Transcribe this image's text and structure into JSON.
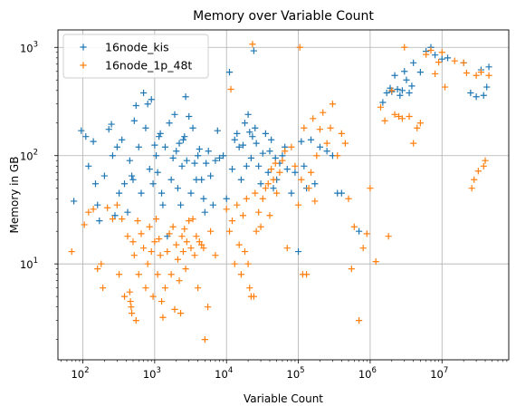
{
  "chart_data": {
    "type": "scatter",
    "title": "Memory over Variable Count",
    "xlabel": "Variable Count",
    "ylabel": "Memory in GB",
    "x_scale": "log",
    "y_scale": "log",
    "xlim": [
      45,
      85000000
    ],
    "ylim": [
      1.3,
      1450
    ],
    "grid": true,
    "legend_position": "top-left",
    "x_ticks": [
      {
        "value": 100,
        "base": "10",
        "exp": "2"
      },
      {
        "value": 1000,
        "base": "10",
        "exp": "3"
      },
      {
        "value": 10000,
        "base": "10",
        "exp": "4"
      },
      {
        "value": 100000,
        "base": "10",
        "exp": "5"
      },
      {
        "value": 1000000,
        "base": "10",
        "exp": "6"
      },
      {
        "value": 10000000,
        "base": "10",
        "exp": "7"
      }
    ],
    "y_ticks": [
      {
        "value": 10,
        "base": "10",
        "exp": "1"
      },
      {
        "value": 100,
        "base": "10",
        "exp": "2"
      },
      {
        "value": 1000,
        "base": "10",
        "exp": "3"
      }
    ],
    "series": [
      {
        "name": "16node_kis",
        "color": "#1f77b4",
        "marker": "plus",
        "points": [
          [
            75,
            38
          ],
          [
            95,
            170
          ],
          [
            110,
            150
          ],
          [
            120,
            80
          ],
          [
            140,
            135
          ],
          [
            150,
            55
          ],
          [
            160,
            35
          ],
          [
            170,
            25
          ],
          [
            200,
            65
          ],
          [
            230,
            175
          ],
          [
            250,
            195
          ],
          [
            260,
            100
          ],
          [
            280,
            28
          ],
          [
            300,
            120
          ],
          [
            320,
            45
          ],
          [
            350,
            140
          ],
          [
            380,
            55
          ],
          [
            420,
            30
          ],
          [
            450,
            90
          ],
          [
            480,
            65
          ],
          [
            500,
            60
          ],
          [
            520,
            210
          ],
          [
            550,
            290
          ],
          [
            600,
            120
          ],
          [
            650,
            45
          ],
          [
            700,
            380
          ],
          [
            750,
            180
          ],
          [
            800,
            300
          ],
          [
            850,
            75
          ],
          [
            900,
            330
          ],
          [
            950,
            55
          ],
          [
            1000,
            125
          ],
          [
            1050,
            100
          ],
          [
            1100,
            70
          ],
          [
            1150,
            150
          ],
          [
            1200,
            160
          ],
          [
            1250,
            45
          ],
          [
            1300,
            35
          ],
          [
            1400,
            120
          ],
          [
            1500,
            18
          ],
          [
            1600,
            200
          ],
          [
            1700,
            60
          ],
          [
            1800,
            95
          ],
          [
            1900,
            240
          ],
          [
            2000,
            110
          ],
          [
            2100,
            50
          ],
          [
            2200,
            130
          ],
          [
            2300,
            35
          ],
          [
            2400,
            80
          ],
          [
            2500,
            140
          ],
          [
            2600,
            150
          ],
          [
            2700,
            350
          ],
          [
            2800,
            90
          ],
          [
            3000,
            230
          ],
          [
            3200,
            45
          ],
          [
            3400,
            180
          ],
          [
            3600,
            85
          ],
          [
            3800,
            60
          ],
          [
            4000,
            100
          ],
          [
            4200,
            115
          ],
          [
            4500,
            60
          ],
          [
            4800,
            40
          ],
          [
            5000,
            30
          ],
          [
            5200,
            85
          ],
          [
            5600,
            110
          ],
          [
            6000,
            65
          ],
          [
            6500,
            35
          ],
          [
            7000,
            90
          ],
          [
            7500,
            170
          ],
          [
            8000,
            95
          ],
          [
            9000,
            100
          ],
          [
            10000,
            40
          ],
          [
            11000,
            590
          ],
          [
            12000,
            75
          ],
          [
            13000,
            140
          ],
          [
            14000,
            160
          ],
          [
            15000,
            120
          ],
          [
            16000,
            60
          ],
          [
            17000,
            125
          ],
          [
            18000,
            200
          ],
          [
            19000,
            80
          ],
          [
            20000,
            240
          ],
          [
            21000,
            165
          ],
          [
            22000,
            95
          ],
          [
            23000,
            150
          ],
          [
            24000,
            930
          ],
          [
            25000,
            180
          ],
          [
            26000,
            130
          ],
          [
            28000,
            80
          ],
          [
            30000,
            55
          ],
          [
            32000,
            105
          ],
          [
            35000,
            160
          ],
          [
            38000,
            70
          ],
          [
            40000,
            110
          ],
          [
            42000,
            140
          ],
          [
            45000,
            50
          ],
          [
            48000,
            95
          ],
          [
            50000,
            60
          ],
          [
            55000,
            85
          ],
          [
            60000,
            100
          ],
          [
            65000,
            120
          ],
          [
            70000,
            75
          ],
          [
            80000,
            45
          ],
          [
            90000,
            70
          ],
          [
            100000,
            13
          ],
          [
            110000,
            135
          ],
          [
            120000,
            80
          ],
          [
            130000,
            50
          ],
          [
            150000,
            140
          ],
          [
            170000,
            55
          ],
          [
            200000,
            120
          ],
          [
            250000,
            110
          ],
          [
            300000,
            100
          ],
          [
            350000,
            45
          ],
          [
            400000,
            45
          ],
          [
            700000,
            20
          ],
          [
            1500000,
            310
          ],
          [
            1700000,
            380
          ],
          [
            1900000,
            420
          ],
          [
            2000000,
            390
          ],
          [
            2200000,
            550
          ],
          [
            2400000,
            410
          ],
          [
            2600000,
            360
          ],
          [
            2800000,
            400
          ],
          [
            3000000,
            600
          ],
          [
            3200000,
            500
          ],
          [
            3500000,
            380
          ],
          [
            3800000,
            440
          ],
          [
            4000000,
            720
          ],
          [
            5000000,
            590
          ],
          [
            6000000,
            920
          ],
          [
            7000000,
            1000
          ],
          [
            8000000,
            850
          ],
          [
            10000000,
            780
          ],
          [
            12000000,
            800
          ],
          [
            20000000,
            720
          ],
          [
            25000000,
            380
          ],
          [
            30000000,
            350
          ],
          [
            35000000,
            620
          ],
          [
            38000000,
            360
          ],
          [
            42000000,
            430
          ],
          [
            45000000,
            660
          ]
        ]
      },
      {
        "name": "16node_1p_48t",
        "color": "#ff7f0e",
        "marker": "plus",
        "points": [
          [
            70,
            13
          ],
          [
            105,
            23
          ],
          [
            120,
            30
          ],
          [
            140,
            32
          ],
          [
            160,
            9
          ],
          [
            180,
            10
          ],
          [
            190,
            6
          ],
          [
            220,
            33
          ],
          [
            260,
            26
          ],
          [
            300,
            35
          ],
          [
            320,
            8
          ],
          [
            350,
            26
          ],
          [
            380,
            5
          ],
          [
            420,
            18
          ],
          [
            450,
            5.5
          ],
          [
            460,
            4.5
          ],
          [
            470,
            4
          ],
          [
            480,
            3.5
          ],
          [
            500,
            16
          ],
          [
            520,
            12
          ],
          [
            550,
            3
          ],
          [
            580,
            25
          ],
          [
            600,
            8
          ],
          [
            650,
            19
          ],
          [
            700,
            14
          ],
          [
            750,
            6
          ],
          [
            800,
            10
          ],
          [
            850,
            22
          ],
          [
            900,
            13
          ],
          [
            950,
            5
          ],
          [
            1000,
            16
          ],
          [
            1050,
            26
          ],
          [
            1100,
            8
          ],
          [
            1150,
            17
          ],
          [
            1200,
            12
          ],
          [
            1250,
            4.5
          ],
          [
            1300,
            3.2
          ],
          [
            1400,
            6
          ],
          [
            1500,
            13
          ],
          [
            1600,
            19
          ],
          [
            1700,
            8
          ],
          [
            1800,
            22
          ],
          [
            1900,
            3.8
          ],
          [
            2000,
            15
          ],
          [
            2100,
            11
          ],
          [
            2200,
            7
          ],
          [
            2300,
            3.5
          ],
          [
            2400,
            18
          ],
          [
            2500,
            13
          ],
          [
            2600,
            21
          ],
          [
            2700,
            9
          ],
          [
            2800,
            16
          ],
          [
            3000,
            25
          ],
          [
            3200,
            14
          ],
          [
            3400,
            26
          ],
          [
            3600,
            12
          ],
          [
            3800,
            18
          ],
          [
            4000,
            6
          ],
          [
            4200,
            16
          ],
          [
            4500,
            15
          ],
          [
            4800,
            14
          ],
          [
            5000,
            2
          ],
          [
            5500,
            4
          ],
          [
            6000,
            20
          ],
          [
            7000,
            12
          ],
          [
            10000,
            32
          ],
          [
            11000,
            20
          ],
          [
            11500,
            410
          ],
          [
            12000,
            25
          ],
          [
            13000,
            10
          ],
          [
            14000,
            35
          ],
          [
            15000,
            15
          ],
          [
            16000,
            8
          ],
          [
            17000,
            28
          ],
          [
            18000,
            13
          ],
          [
            19000,
            40
          ],
          [
            20000,
            10
          ],
          [
            21000,
            6
          ],
          [
            22000,
            5
          ],
          [
            23000,
            1070
          ],
          [
            24000,
            5
          ],
          [
            25000,
            45
          ],
          [
            26000,
            20
          ],
          [
            28000,
            30
          ],
          [
            30000,
            22
          ],
          [
            32000,
            40
          ],
          [
            35000,
            50
          ],
          [
            38000,
            55
          ],
          [
            40000,
            28
          ],
          [
            42000,
            75
          ],
          [
            45000,
            60
          ],
          [
            48000,
            85
          ],
          [
            50000,
            45
          ],
          [
            55000,
            70
          ],
          [
            60000,
            90
          ],
          [
            65000,
            110
          ],
          [
            70000,
            14
          ],
          [
            80000,
            120
          ],
          [
            90000,
            80
          ],
          [
            100000,
            35
          ],
          [
            105000,
            1000
          ],
          [
            110000,
            60
          ],
          [
            115000,
            8
          ],
          [
            120000,
            180
          ],
          [
            130000,
            8
          ],
          [
            140000,
            50
          ],
          [
            150000,
            70
          ],
          [
            160000,
            220
          ],
          [
            170000,
            38
          ],
          [
            180000,
            100
          ],
          [
            200000,
            175
          ],
          [
            220000,
            250
          ],
          [
            250000,
            130
          ],
          [
            280000,
            180
          ],
          [
            300000,
            300
          ],
          [
            350000,
            100
          ],
          [
            400000,
            160
          ],
          [
            450000,
            130
          ],
          [
            500000,
            40
          ],
          [
            550000,
            9
          ],
          [
            600000,
            22
          ],
          [
            700000,
            3
          ],
          [
            800000,
            14
          ],
          [
            900000,
            19
          ],
          [
            1000000,
            50
          ],
          [
            1200000,
            10.5
          ],
          [
            1400000,
            280
          ],
          [
            1600000,
            210
          ],
          [
            1800000,
            18
          ],
          [
            2000000,
            400
          ],
          [
            2200000,
            240
          ],
          [
            2500000,
            230
          ],
          [
            2800000,
            220
          ],
          [
            3000000,
            1000
          ],
          [
            3500000,
            230
          ],
          [
            4000000,
            130
          ],
          [
            4500000,
            180
          ],
          [
            5000000,
            200
          ],
          [
            6000000,
            860
          ],
          [
            7000000,
            940
          ],
          [
            8000000,
            570
          ],
          [
            9000000,
            730
          ],
          [
            10000000,
            900
          ],
          [
            11000000,
            430
          ],
          [
            15000000,
            750
          ],
          [
            20000000,
            720
          ],
          [
            22000000,
            580
          ],
          [
            26000000,
            50
          ],
          [
            28000000,
            60
          ],
          [
            30000000,
            550
          ],
          [
            32000000,
            72
          ],
          [
            35000000,
            590
          ],
          [
            38000000,
            80
          ],
          [
            40000000,
            90
          ],
          [
            45000000,
            550
          ]
        ]
      }
    ]
  }
}
